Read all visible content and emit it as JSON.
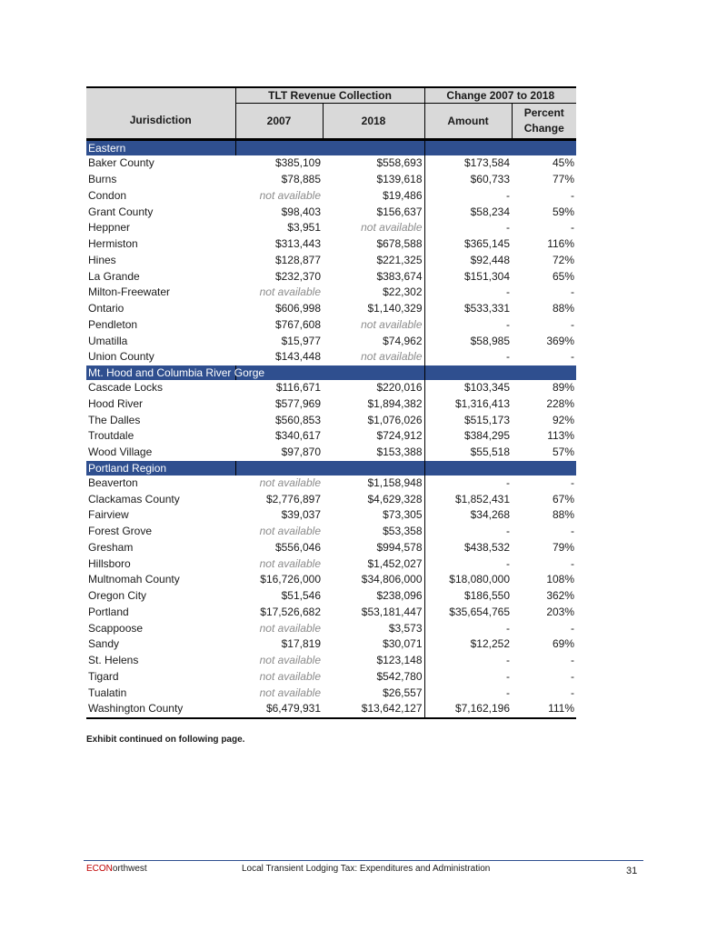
{
  "table": {
    "group_header_revenue": "TLT Revenue Collection",
    "group_header_change": "Change 2007 to 2018",
    "col_jurisdiction": "Jurisdiction",
    "col_2007": "2007",
    "col_2018": "2018",
    "col_amount": "Amount",
    "col_percent": "Percent Change",
    "sections": [
      {
        "name": "Eastern",
        "rows": [
          {
            "name": "Baker County",
            "v2007": "$385,109",
            "v2018": "$558,693",
            "amount": "$173,584",
            "percent": "45%"
          },
          {
            "name": "Burns",
            "v2007": "$78,885",
            "v2018": "$139,618",
            "amount": "$60,733",
            "percent": "77%"
          },
          {
            "name": "Condon",
            "v2007": "not available",
            "v2018": "$19,486",
            "amount": "-",
            "percent": "-"
          },
          {
            "name": "Grant County",
            "v2007": "$98,403",
            "v2018": "$156,637",
            "amount": "$58,234",
            "percent": "59%"
          },
          {
            "name": "Heppner",
            "v2007": "$3,951",
            "v2018": "not available",
            "amount": "-",
            "percent": "-"
          },
          {
            "name": "Hermiston",
            "v2007": "$313,443",
            "v2018": "$678,588",
            "amount": "$365,145",
            "percent": "116%"
          },
          {
            "name": "Hines",
            "v2007": "$128,877",
            "v2018": "$221,325",
            "amount": "$92,448",
            "percent": "72%"
          },
          {
            "name": "La Grande",
            "v2007": "$232,370",
            "v2018": "$383,674",
            "amount": "$151,304",
            "percent": "65%"
          },
          {
            "name": "Milton-Freewater",
            "v2007": "not available",
            "v2018": "$22,302",
            "amount": "-",
            "percent": "-"
          },
          {
            "name": "Ontario",
            "v2007": "$606,998",
            "v2018": "$1,140,329",
            "amount": "$533,331",
            "percent": "88%"
          },
          {
            "name": "Pendleton",
            "v2007": "$767,608",
            "v2018": "not available",
            "amount": "-",
            "percent": "-"
          },
          {
            "name": "Umatilla",
            "v2007": "$15,977",
            "v2018": "$74,962",
            "amount": "$58,985",
            "percent": "369%"
          },
          {
            "name": "Union County",
            "v2007": "$143,448",
            "v2018": "not available",
            "amount": "-",
            "percent": "-"
          }
        ]
      },
      {
        "name": "Mt. Hood and Columbia River Gorge",
        "rows": [
          {
            "name": "Cascade Locks",
            "v2007": "$116,671",
            "v2018": "$220,016",
            "amount": "$103,345",
            "percent": "89%"
          },
          {
            "name": "Hood River",
            "v2007": "$577,969",
            "v2018": "$1,894,382",
            "amount": "$1,316,413",
            "percent": "228%"
          },
          {
            "name": "The Dalles",
            "v2007": "$560,853",
            "v2018": "$1,076,026",
            "amount": "$515,173",
            "percent": "92%"
          },
          {
            "name": "Troutdale",
            "v2007": "$340,617",
            "v2018": "$724,912",
            "amount": "$384,295",
            "percent": "113%"
          },
          {
            "name": "Wood Village",
            "v2007": "$97,870",
            "v2018": "$153,388",
            "amount": "$55,518",
            "percent": "57%"
          }
        ]
      },
      {
        "name": "Portland Region",
        "rows": [
          {
            "name": "Beaverton",
            "v2007": "not available",
            "v2018": "$1,158,948",
            "amount": "-",
            "percent": "-"
          },
          {
            "name": "Clackamas County",
            "v2007": "$2,776,897",
            "v2018": "$4,629,328",
            "amount": "$1,852,431",
            "percent": "67%"
          },
          {
            "name": "Fairview",
            "v2007": "$39,037",
            "v2018": "$73,305",
            "amount": "$34,268",
            "percent": "88%"
          },
          {
            "name": "Forest Grove",
            "v2007": "not available",
            "v2018": "$53,358",
            "amount": "-",
            "percent": "-"
          },
          {
            "name": "Gresham",
            "v2007": "$556,046",
            "v2018": "$994,578",
            "amount": "$438,532",
            "percent": "79%"
          },
          {
            "name": "Hillsboro",
            "v2007": "not available",
            "v2018": "$1,452,027",
            "amount": "-",
            "percent": "-"
          },
          {
            "name": "Multnomah County",
            "v2007": "$16,726,000",
            "v2018": "$34,806,000",
            "amount": "$18,080,000",
            "percent": "108%"
          },
          {
            "name": "Oregon City",
            "v2007": "$51,546",
            "v2018": "$238,096",
            "amount": "$186,550",
            "percent": "362%"
          },
          {
            "name": "Portland",
            "v2007": "$17,526,682",
            "v2018": "$53,181,447",
            "amount": "$35,654,765",
            "percent": "203%"
          },
          {
            "name": "Scappoose",
            "v2007": "not available",
            "v2018": "$3,573",
            "amount": "-",
            "percent": "-"
          },
          {
            "name": "Sandy",
            "v2007": "$17,819",
            "v2018": "$30,071",
            "amount": "$12,252",
            "percent": "69%"
          },
          {
            "name": "St. Helens",
            "v2007": "not available",
            "v2018": "$123,148",
            "amount": "-",
            "percent": "-"
          },
          {
            "name": "Tigard",
            "v2007": "not available",
            "v2018": "$542,780",
            "amount": "-",
            "percent": "-"
          },
          {
            "name": "Tualatin",
            "v2007": "not available",
            "v2018": "$26,557",
            "amount": "-",
            "percent": "-"
          },
          {
            "name": "Washington County",
            "v2007": "$6,479,931",
            "v2018": "$13,642,127",
            "amount": "$7,162,196",
            "percent": "111%"
          }
        ]
      }
    ]
  },
  "note": "Exhibit continued on following page.",
  "footer": {
    "brand_part1": "ECON",
    "brand_part2": "orthwest",
    "title": "Local Transient Lodging Tax: Expenditures and Administration",
    "page_number": "31"
  },
  "colors": {
    "section_band": "#2f4f8f",
    "header_bg": "#d9d9d9",
    "brand_red": "#c00000",
    "not_available_text": "#8c8c8c"
  }
}
